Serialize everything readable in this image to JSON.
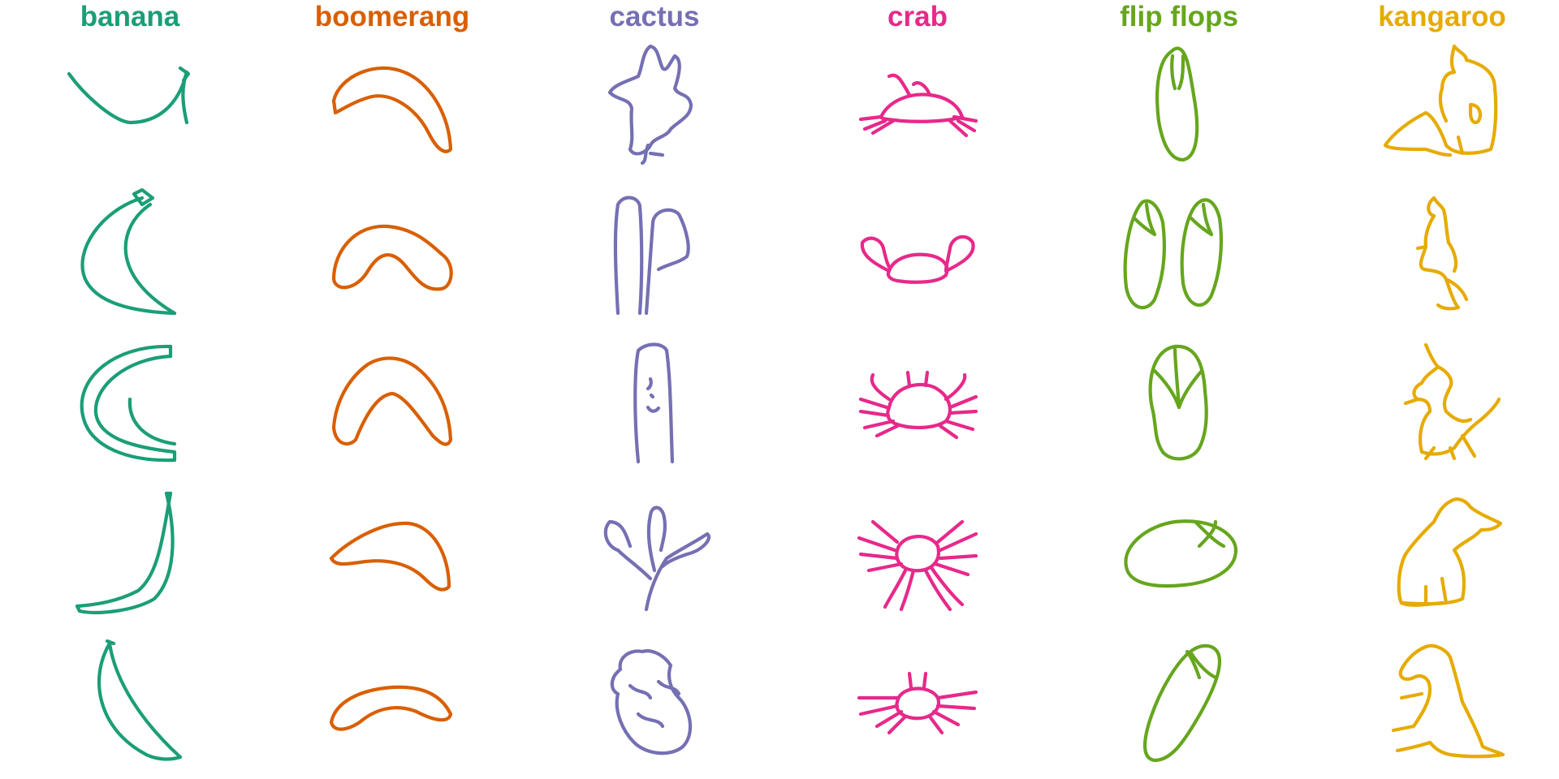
{
  "columns": [
    {
      "label": "banana",
      "color": "#1b9e77",
      "sketches": [
        {
          "icon": "banana-sketch-1",
          "paths": [
            "M-75,-38 C-55,-10 -20,20 0,22 C35,22 60,0 70,-40",
            "M70,-40 C62,-18 66,5 70,22",
            "M62,-45 L72,-38 L66,-30"
          ]
        },
        {
          "icon": "banana-sketch-2",
          "paths": [
            "M15,-70 C-35,-55 -70,-5 -55,30 C-42,58 0,70 55,72",
            "M25,-62 C-15,-35 -25,25 55,72",
            "M5,-75 L15,-62 L28,-70 L15,-80 Z"
          ]
        },
        {
          "icon": "banana-sketch-3",
          "paths": [
            "M50,-70 C-20,-72 -68,-30 -58,15 C-50,55 0,72 55,70",
            "M50,-58 C-5,-55 -45,-20 -42,12 C-38,45 10,55 55,60",
            "M50,-70 L50,-58",
            "M55,70 L55,60",
            "M55,50 C20,45 -2,25 0,-5"
          ]
        },
        {
          "icon": "banana-sketch-4",
          "paths": [
            "M45,-75 C58,-20 55,30 30,55 C5,70 -40,75 -62,70",
            "M50,-75 C40,-20 35,25 10,45 C-15,58 -40,62 -65,64",
            "M-65,64 L-62,70",
            "M45,-75 L50,-75"
          ]
        },
        {
          "icon": "banana-sketch-5",
          "paths": [
            "M-25,-72 C-50,-30 -40,30 15,62 C30,72 50,72 62,68",
            "M-25,-72 C-18,-25 15,25 62,68",
            "M-28,-75 L-20,-72"
          ]
        }
      ]
    },
    {
      "label": "boomerang",
      "color": "#d95f02",
      "sketches": [
        {
          "icon": "boomerang-sketch-1",
          "paths": [
            "M-72,-5 C-65,-35 -20,-55 15,-40 C45,-28 70,10 72,55 C65,62 55,55 45,35 C30,5 0,-15 -25,-10 C-45,-5 -60,5 -70,10 Z"
          ]
        },
        {
          "icon": "boomerang-sketch-2",
          "paths": [
            "M-72,30 C-72,-5 -45,-38 -5,-35 C30,-32 50,-10 62,0 C78,12 75,40 60,42 C40,45 30,30 15,12 C0,-5 -15,-5 -30,20 C-45,45 -70,45 -72,30 Z"
          ]
        },
        {
          "icon": "boomerang-sketch-3",
          "paths": [
            "M-72,30 C-70,0 -55,-30 -30,-48 C-10,-60 15,-58 35,-40 C55,-22 70,5 72,45 C68,55 60,50 50,40 C35,20 15,-10 0,-12 C-20,-10 -35,20 -45,45 C-55,55 -70,50 -72,30 Z"
          ]
        },
        {
          "icon": "boomerang-sketch-4",
          "paths": [
            "M-75,5 C-55,-15 -15,-40 20,-38 C50,-35 70,0 70,40 C62,48 52,42 40,30 C20,10 -10,5 -40,10 C-55,12 -70,15 -75,5 Z"
          ]
        },
        {
          "icon": "boomerang-sketch-5",
          "paths": [
            "M-75,25 C-70,0 -40,-15 0,-18 C35,-20 60,-10 72,15 C70,25 55,25 30,12 C5,2 -20,8 -40,25 C-55,35 -72,38 -75,25 Z"
          ]
        }
      ]
    },
    {
      "label": "cactus",
      "color": "#7570b3",
      "sketches": [
        {
          "icon": "cactus-sketch-1",
          "paths": [
            "M-5,-72 C-15,-65 -15,-45 -20,-35 C-30,-30 -50,-25 -55,-15 C-45,-5 -30,-8 -28,5 C-30,25 -25,40 -30,55 C-25,65 -10,60 -5,50 C0,40 15,40 20,30 C30,20 45,15 45,0 C42,-15 30,-10 25,-20 C30,-35 35,-55 25,-60 C18,-50 15,-40 10,-45 C5,-55 5,-70 -5,-72 Z",
            "M-8,50 C-12,60 -10,70 -15,72 M-5,60 L10,62"
          ]
        },
        {
          "icon": "cactus-sketch-2",
          "paths": [
            "M-45,72 C-48,20 -50,-30 -45,-62 C-38,-75 -20,-72 -18,-60 C-15,-20 -15,30 -18,72",
            "M-10,72 C-8,40 -5,0 -2,-40 C0,-55 20,-60 30,-50 C38,-35 45,-10 40,2 C30,10 15,12 5,18"
          ]
        },
        {
          "icon": "cactus-sketch-3",
          "paths": [
            "M-20,72 C-25,20 -25,-40 -20,-65 C-10,-75 10,-75 15,-65 C20,-30 20,20 22,72",
            "M-5,-30 C-3,-25 -5,-20 -8,-18",
            "M-4,-10 L-2,-8",
            "M-8,5 C-5,10 0,12 5,6"
          ]
        },
        {
          "icon": "cactus-sketch-4",
          "paths": [
            "M-10,68 C-5,40 5,20 15,5 C30,-5 50,-15 65,-25 C72,-20 60,-5 40,0 C25,5 15,10 10,15",
            "M-5,30 C-20,15 -35,5 -45,-5 C-60,-10 -65,-30 -55,-40 C-40,-40 -35,-25 -30,-10",
            "M0,20 C-5,0 -10,-25 -5,-48 C-3,-62 10,-60 12,-45 C15,-30 10,-15 8,-5"
          ]
        },
        {
          "icon": "cactus-sketch-5",
          "paths": [
            "M-15,-62 C-30,-65 -45,-55 -42,-40 C-55,-30 -55,-15 -45,-10 C-50,10 -40,35 -25,50 C-10,65 20,68 35,55 C50,40 45,10 30,-5 C20,-15 15,-30 20,-45 C10,-60 -5,-65 -15,-62 Z",
            "M-30,-20 C-20,-10 -10,-15 -5,-5 M5,-25 C15,-15 25,-20 30,-10 M-20,15 C-10,25 5,20 10,30"
          ]
        }
      ]
    },
    {
      "label": "crab",
      "color": "#e7298a",
      "sketches": [
        {
          "icon": "crab-sketch-1",
          "paths": [
            "M-45,15 C-35,-5 -10,-15 15,-12 C35,-10 50,0 55,15 C40,20 10,22 -20,20 C-35,18 -45,18 -45,15 Z",
            "M-10,-12 C-20,-30 -25,-40 -35,-35 M15,-12 C10,-25 0,-30 -5,-25",
            "M-45,15 L-70,18 M-40,20 L-65,30 M-30,20 L-55,35 M45,15 L72,20 M50,20 L70,32 M40,20 L60,38"
          ]
        },
        {
          "icon": "crab-sketch-2",
          "paths": [
            "M-35,20 C-30,5 -10,-2 10,0 C30,2 40,12 35,25 C25,35 -5,35 -25,32 C-35,30 -38,25 -35,20 Z",
            "M-35,20 C-55,10 -70,0 -68,-15 C-60,-25 -45,-20 -42,-8 C-40,0 -38,10 -35,15",
            "M35,20 C55,10 72,0 68,-15 C60,-28 42,-22 40,-8 C38,2 36,12 35,18"
          ]
        },
        {
          "icon": "crab-sketch-3",
          "paths": [
            "M-35,5 C-30,-20 0,-28 20,-20 C40,-10 45,10 35,22 C20,32 -10,32 -28,25 C-38,20 -38,12 -35,5 Z",
            "M-35,-5 C-50,-15 -60,-25 -55,-35 M-38,5 L-70,-5 M-36,15 L-70,10 M-30,22 L-65,30 M-25,28 L-50,40",
            "M35,-5 C50,-15 60,-28 58,-35 M40,5 L72,-8 M40,12 L72,10 M35,22 L68,32 M28,28 L48,42",
            "M-10,-22 L-12,-38 M10,-22 L12,-38"
          ]
        },
        {
          "icon": "crab-sketch-4",
          "paths": [
            "M-25,-5 C-20,-25 15,-28 25,-10 C30,10 15,22 -5,20 C-20,18 -28,8 -25,-5 Z",
            "M-25,-15 L-55,-40 M-28,-5 L-72,-20 M-25,5 L-70,0 M-20,12 L-60,20",
            "M25,-15 L55,-40 M28,-5 L72,-25 M28,5 L72,2 M22,12 L62,25",
            "M-15,20 C-25,40 -35,55 -40,65 M-5,20 C-10,40 -15,55 -20,68 M10,20 C20,40 30,55 40,68 M18,18 C30,35 42,50 55,62"
          ]
        },
        {
          "icon": "crab-sketch-5",
          "paths": [
            "M-25,0 C-22,-20 15,-22 25,-5 C30,10 15,22 -5,20 C-20,18 -28,10 -25,0 Z",
            "M-25,-5 L-72,-5 M-25,5 L-70,15 M-20,12 L-50,30 M-15,18 L-35,38",
            "M25,-5 L72,-12 M25,5 L70,8 M20,12 L50,28 M15,18 L30,38",
            "M-8,-18 L-10,-35 M8,-18 L10,-35"
          ]
        }
      ]
    },
    {
      "label": "flip flops",
      "color": "#66a61e",
      "sketches": [
        {
          "icon": "flip-flops-sketch-1",
          "paths": [
            "M-10,-65 C-25,-55 -30,-20 -25,20 C-20,50 -10,68 5,68 C22,65 25,35 20,0 C15,-30 12,-55 5,-65 C0,-72 -5,-70 -10,-65 Z",
            "M-8,-60 C-10,-45 -8,-30 -5,-20 M5,-60 C5,-45 5,-30 0,-20"
          ]
        },
        {
          "icon": "flip-flops-sketch-2",
          "paths": [
            "M-45,-65 C-60,-50 -70,0 -65,40 C-60,68 -40,72 -30,55 C-20,30 -15,0 -20,-40 C-25,-60 -35,-70 -45,-65 Z",
            "M25,-65 C10,-55 0,-10 5,35 C10,65 30,70 40,50 C50,25 55,-10 50,-45 C45,-65 35,-72 25,-65 Z",
            "M-55,-45 C-45,-35 -38,-30 -30,-25 M-40,-62 C-38,-45 -35,-35 -30,-25",
            "M15,-45 C25,-35 32,-30 40,-25 M30,-62 C32,-45 35,-35 40,-25"
          ]
        },
        {
          "icon": "flip-flops-sketch-3",
          "paths": [
            "M-5,-70 C-35,-65 -40,-20 -32,10 C-28,30 -30,45 -20,60 C-10,72 15,72 25,55 C35,35 35,10 32,-15 C30,-50 20,-72 -5,-70 Z",
            "M-30,-40 C-15,-25 -5,-10 0,5 M28,-40 C15,-25 5,-10 0,5",
            "M-5,-70 C-5,-50 -2,-25 0,5"
          ]
        },
        {
          "icon": "flip-flops-sketch-4",
          "paths": [
            "M-65,15 C-70,-10 -40,-35 -5,-40 C40,-45 70,-25 70,-5 C70,20 40,35 5,38 C-35,42 -62,35 -65,15 Z",
            "M20,-40 C35,-25 45,-15 55,-10 M25,-10 C35,-20 45,-30 45,-40"
          ]
        },
        {
          "icon": "flip-flops-sketch-5",
          "paths": [
            "M25,-68 C0,-60 -25,-10 -35,20 C-45,50 -45,70 -30,72 C-10,72 5,50 20,25 C35,0 50,-30 50,-50 C50,-65 40,-72 25,-68 Z",
            "M15,-60 C25,-45 35,-35 45,-30 M25,-30 C20,-45 15,-55 10,-62"
          ]
        }
      ]
    },
    {
      "label": "kangaroo",
      "color": "#e6ab02",
      "sketches": [
        {
          "icon": "kangaroo-sketch-1",
          "paths": [
            "M15,-72 C20,-65 30,-62 30,-55 C50,-50 65,-40 65,-20 C68,10 65,40 60,55 C40,62 15,62 5,50 C0,35 -10,15 -20,10 C-40,20 -60,35 -70,50 C-65,55 -40,55 -20,55 C-10,58 0,62 10,62",
            "M15,-72 C12,-60 10,-50 15,-40 C5,-40 0,-30 0,-20 C-5,-5 0,10 5,20",
            "M35,0 C45,0 50,10 45,20 C40,25 35,20 35,10 Z",
            "M20,40 L25,60"
          ]
        },
        {
          "icon": "kangaroo-sketch-2",
          "paths": [
            "M-10,-70 C-20,-62 -18,-50 -10,-48 C-15,-40 -22,-25 -20,-10 C-25,5 -30,15 -22,18 C-10,20 0,20 5,30 C10,45 15,60 20,65 C10,68 0,66 -5,62",
            "M-10,-70 C-5,-62 0,-60 2,-55 C5,-45 5,-30 8,-15 C15,-5 20,10 15,20",
            "M-20,-10 L-30,-8 M5,30 C15,35 25,42 30,55"
          ]
        },
        {
          "icon": "kangaroo-sketch-3",
          "paths": [
            "M-20,-72 C-15,-60 -10,-50 -5,-45 C-10,-40 -20,-35 -25,-25 C-35,-20 -38,-10 -30,-5 C-20,-5 -15,0 -15,10 C-25,20 -30,40 -25,60 C-10,65 5,62 15,55 C25,40 35,30 48,20 C60,10 68,0 70,-5",
            "M-5,-45 C5,-40 15,-30 10,-20 C5,-10 0,0 5,10 C15,20 25,25 35,20",
            "M-30,-5 L-45,0 M-10,55 L-20,68 M10,55 L15,68 M25,40 L40,65"
          ]
        },
        {
          "icon": "kangaroo-sketch-4",
          "paths": [
            "M10,-65 C20,-72 30,-65 35,-58 C45,-50 58,-45 72,-38 C65,-30 55,-30 48,-30 C40,-20 25,-15 15,-5 C25,10 30,30 25,55 C10,62 -20,62 -50,60 C-55,50 -55,20 -45,0 C-35,-15 -20,-30 -10,-40 C-5,-50 0,-60 10,-65 Z",
            "M-50,60 C-40,65 -20,62 0,60 M-20,40 L-20,60 M0,30 L5,60"
          ]
        },
        {
          "icon": "kangaroo-sketch-5",
          "paths": [
            "M-20,-68 C-10,-72 5,-65 10,-55 C15,-40 20,-20 25,0 C35,20 45,40 50,55 C60,60 70,62 75,65 C55,68 30,68 10,65 C-5,62 -10,55 -15,50",
            "M-20,-68 C-35,-62 -45,-50 -50,-40 C-55,-30 -45,-25 -35,-30 C-25,-35 -15,-30 -15,-15 C-15,0 -25,15 -35,30",
            "M-35,30 L-60,35 M-15,50 C-30,55 -45,58 -55,60 M-25,-10 L-50,-5"
          ]
        }
      ]
    }
  ]
}
